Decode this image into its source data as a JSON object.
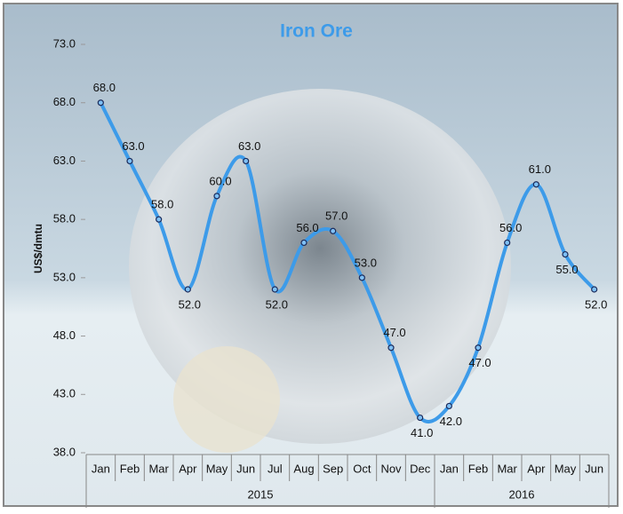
{
  "chart_data": {
    "type": "line",
    "title": "Iron Ore",
    "y_label": "US$/dmtu",
    "categories": [
      "Jan",
      "Feb",
      "Mar",
      "Apr",
      "May",
      "Jun",
      "Jul",
      "Aug",
      "Sep",
      "Oct",
      "Nov",
      "Dec",
      "Jan",
      "Feb",
      "Mar",
      "Apr",
      "May",
      "Jun"
    ],
    "groups": [
      {
        "label": "2015",
        "count": 12
      },
      {
        "label": "2016",
        "count": 6
      }
    ],
    "series": [
      {
        "name": "Iron Ore",
        "color": "#3d9be9",
        "values": [
          68,
          63,
          58,
          52,
          60,
          63,
          52,
          56,
          57,
          53,
          47,
          41,
          42,
          47,
          56,
          61,
          55,
          52
        ],
        "value_labels": [
          "68.0",
          "63.0",
          "58.0",
          "52.0",
          "60.0",
          "63.0",
          "52.0",
          "56.0",
          "57.0",
          "53.0",
          "47.0",
          "41.0",
          "42.0",
          "47.0",
          "56.0",
          "61.0",
          "55.0",
          "52.0"
        ]
      }
    ],
    "ylim": [
      38,
      73
    ],
    "yticks": [
      {
        "value": 38,
        "label": "38.0"
      },
      {
        "value": 43,
        "label": "43.0"
      },
      {
        "value": 48,
        "label": "48.0"
      },
      {
        "value": 53,
        "label": "53.0"
      },
      {
        "value": 58,
        "label": "58.0"
      },
      {
        "value": 63,
        "label": "63.0"
      },
      {
        "value": 68,
        "label": "68.0"
      },
      {
        "value": 73,
        "label": "73.0"
      }
    ],
    "smooth": true,
    "grid": false
  }
}
